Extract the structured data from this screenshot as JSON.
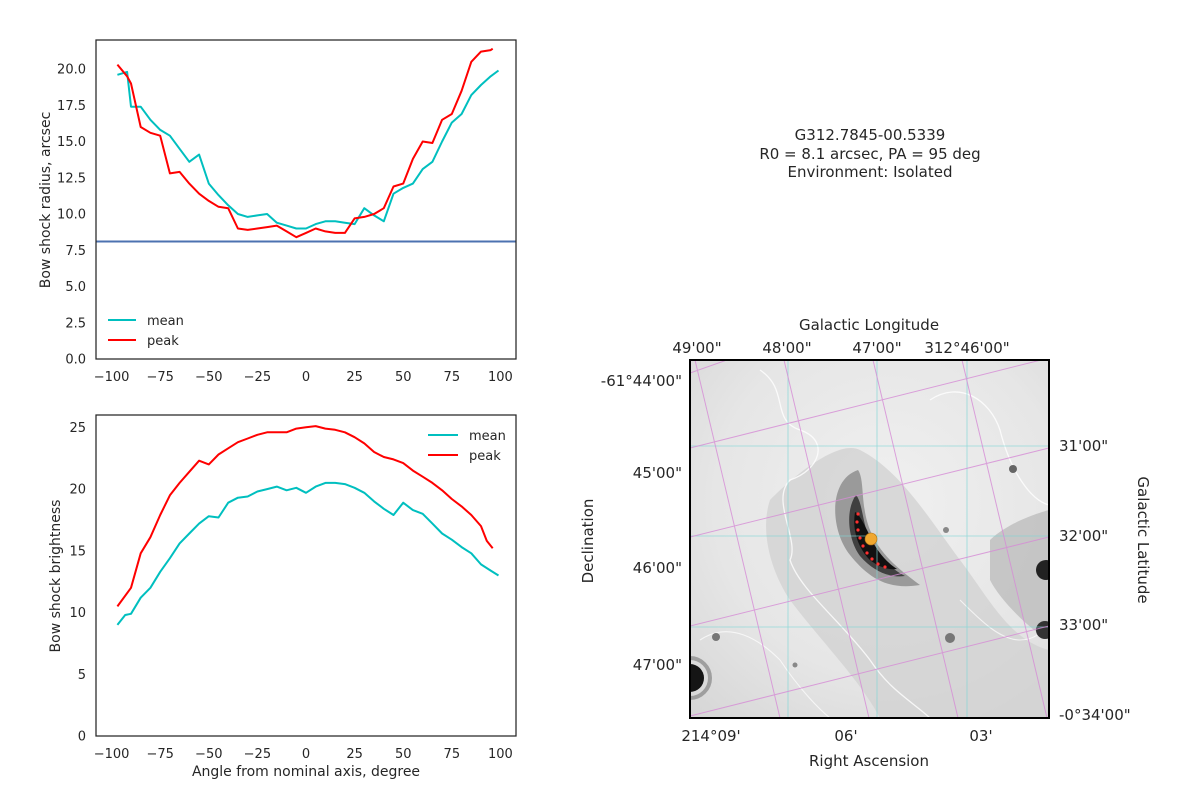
{
  "title": {
    "line1": "G312.7845-00.5339",
    "line2": "R0 = 8.1 arcsec, PA = 95 deg",
    "line3": "Environment: Isolated"
  },
  "colors": {
    "mean": "#00bfbf",
    "peak": "#ff0000",
    "r0_line": "#4c72b0"
  },
  "chart_data": [
    {
      "type": "line",
      "ylabel": "Bow shock radius, arcsec",
      "xlabel": "",
      "xlim": [
        -108,
        108
      ],
      "ylim": [
        0,
        22
      ],
      "xticks": [
        -100,
        -75,
        -50,
        -25,
        0,
        25,
        50,
        75,
        100
      ],
      "yticks": [
        0,
        2.5,
        5,
        7.5,
        10,
        12.5,
        15,
        17.5,
        20
      ],
      "ytick_labels": [
        "0.0",
        "2.5",
        "5.0",
        "7.5",
        "10.0",
        "12.5",
        "15.0",
        "17.5",
        "20.0"
      ],
      "hline": {
        "y": 8.1
      },
      "legend_position": "lower-left",
      "series": [
        {
          "name": "mean",
          "x": [
            -97,
            -92,
            -90,
            -85,
            -80,
            -75,
            -70,
            -65,
            -60,
            -55,
            -50,
            -45,
            -40,
            -35,
            -30,
            -25,
            -20,
            -15,
            -10,
            -5,
            0,
            5,
            10,
            15,
            20,
            25,
            30,
            35,
            40,
            45,
            50,
            55,
            60,
            65,
            70,
            75,
            80,
            85,
            90,
            95,
            99
          ],
          "y": [
            19.6,
            19.8,
            17.4,
            17.4,
            16.5,
            15.8,
            15.4,
            14.5,
            13.6,
            14.1,
            12.1,
            11.3,
            10.6,
            10.0,
            9.8,
            9.9,
            10.0,
            9.4,
            9.2,
            9.0,
            9.0,
            9.3,
            9.5,
            9.5,
            9.4,
            9.3,
            10.4,
            9.9,
            9.5,
            11.4,
            11.8,
            12.1,
            13.1,
            13.6,
            15.0,
            16.3,
            16.9,
            18.2,
            18.9,
            19.5,
            19.9
          ]
        },
        {
          "name": "peak",
          "x": [
            -97,
            -92,
            -90,
            -85,
            -80,
            -75,
            -70,
            -65,
            -60,
            -55,
            -50,
            -45,
            -40,
            -35,
            -30,
            -25,
            -20,
            -15,
            -10,
            -5,
            0,
            5,
            10,
            15,
            20,
            25,
            30,
            35,
            40,
            45,
            50,
            55,
            60,
            65,
            70,
            75,
            80,
            85,
            90,
            95,
            96
          ],
          "y": [
            20.3,
            19.5,
            19.0,
            16.0,
            15.6,
            15.4,
            12.8,
            12.9,
            12.1,
            11.4,
            10.9,
            10.5,
            10.4,
            9.0,
            8.9,
            9.0,
            9.1,
            9.2,
            8.8,
            8.4,
            8.7,
            9.0,
            8.8,
            8.7,
            8.7,
            9.7,
            9.8,
            10.0,
            10.4,
            11.9,
            12.1,
            13.8,
            15.0,
            14.9,
            16.5,
            16.9,
            18.5,
            20.5,
            21.2,
            21.3,
            21.4
          ]
        }
      ]
    },
    {
      "type": "line",
      "ylabel": "Bow shock brightness",
      "xlabel": "Angle from nominal axis, degree",
      "xlim": [
        -108,
        108
      ],
      "ylim": [
        0,
        26
      ],
      "xticks": [
        -100,
        -75,
        -50,
        -25,
        0,
        25,
        50,
        75,
        100
      ],
      "yticks": [
        0,
        5,
        10,
        15,
        20,
        25
      ],
      "ytick_labels": [
        "0",
        "5",
        "10",
        "15",
        "20",
        "25"
      ],
      "legend_position": "upper-right",
      "series": [
        {
          "name": "mean",
          "x": [
            -97,
            -93,
            -90,
            -85,
            -80,
            -75,
            -70,
            -65,
            -60,
            -55,
            -50,
            -45,
            -40,
            -35,
            -30,
            -25,
            -20,
            -15,
            -10,
            -5,
            0,
            5,
            10,
            15,
            20,
            25,
            30,
            35,
            40,
            45,
            50,
            55,
            60,
            65,
            70,
            75,
            80,
            85,
            90,
            95,
            99
          ],
          "y": [
            9.0,
            9.8,
            9.9,
            11.2,
            12.0,
            13.3,
            14.4,
            15.6,
            16.4,
            17.2,
            17.8,
            17.7,
            18.9,
            19.3,
            19.4,
            19.8,
            20.0,
            20.2,
            19.9,
            20.1,
            19.7,
            20.2,
            20.5,
            20.5,
            20.4,
            20.1,
            19.7,
            19.0,
            18.4,
            17.9,
            18.9,
            18.3,
            18.0,
            17.2,
            16.4,
            15.9,
            15.3,
            14.8,
            13.9,
            13.4,
            13.0
          ]
        },
        {
          "name": "peak",
          "x": [
            -97,
            -90,
            -85,
            -80,
            -75,
            -70,
            -65,
            -60,
            -55,
            -50,
            -45,
            -40,
            -35,
            -30,
            -25,
            -20,
            -15,
            -10,
            -5,
            0,
            5,
            10,
            15,
            20,
            25,
            30,
            35,
            40,
            45,
            50,
            55,
            60,
            65,
            70,
            75,
            80,
            85,
            90,
            93,
            96
          ],
          "y": [
            10.5,
            12.0,
            14.8,
            16.1,
            17.9,
            19.5,
            20.5,
            21.4,
            22.3,
            22.0,
            22.8,
            23.3,
            23.8,
            24.1,
            24.4,
            24.6,
            24.6,
            24.6,
            24.9,
            25.0,
            25.1,
            24.9,
            24.8,
            24.6,
            24.2,
            23.7,
            23.0,
            22.6,
            22.4,
            22.1,
            21.5,
            21.0,
            20.5,
            19.9,
            19.2,
            18.6,
            17.9,
            17.0,
            15.8,
            15.2
          ]
        }
      ]
    }
  ],
  "sky_map": {
    "top_axis_label": "Galactic Longitude",
    "right_axis_label": "Galactic Latitude",
    "bottom_axis_label": "Right Ascension",
    "left_axis_label": "Declination",
    "top_ticks": [
      "49'00\"",
      "48'00\"",
      "47'00\"",
      "312°46'00\""
    ],
    "right_ticks": [
      "31'00\"",
      "32'00\"",
      "33'00\"",
      "-0°34'00\""
    ],
    "bottom_ticks": [
      "214°09'",
      "06'",
      "03'"
    ],
    "left_ticks": [
      "-61°44'00\"",
      "45'00\"",
      "46'00\"",
      "47'00\""
    ]
  }
}
